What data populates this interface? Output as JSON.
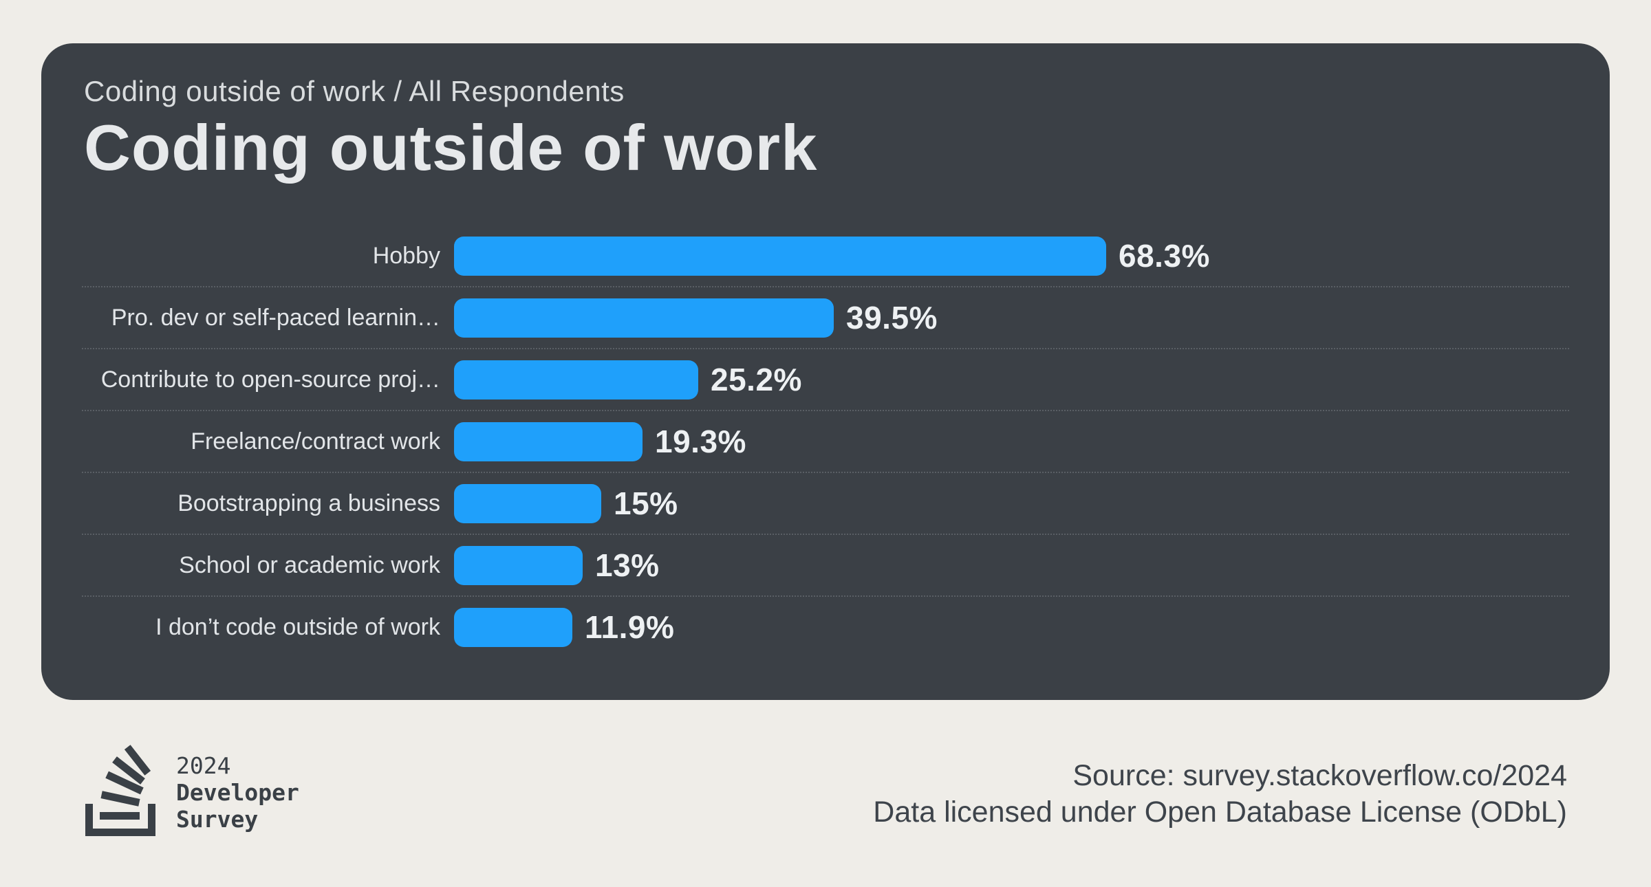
{
  "page": {
    "background_color": "#EFEDE8"
  },
  "card": {
    "background_color": "#3B4046",
    "breadcrumb": "Coding outside of work / All Respondents",
    "title": "Coding outside of work"
  },
  "chart_data": {
    "type": "bar",
    "orientation": "horizontal",
    "title": "Coding outside of work",
    "subtitle": "Coding outside of work / All Respondents",
    "categories": [
      "Hobby",
      "Pro. dev or self-paced learnin…",
      "Contribute to open-source proj…",
      "Freelance/contract work",
      "Bootstrapping a business",
      "School or academic work",
      "I don’t code outside of work"
    ],
    "values": [
      68.3,
      39.5,
      25.2,
      19.3,
      15,
      13,
      11.9
    ],
    "value_labels": [
      "68.3%",
      "39.5%",
      "25.2%",
      "19.3%",
      "15%",
      "13%",
      "11.9%"
    ],
    "bar_color": "#1FA0FB",
    "xlim": [
      0,
      100
    ],
    "grid": "dotted row separators",
    "legend": "none"
  },
  "footer": {
    "logo": {
      "icon": "stack-overflow-logo",
      "line1": "2024",
      "line2": "Developer",
      "line3": "Survey"
    },
    "source_line1": "Source: survey.stackoverflow.co/2024",
    "source_line2": "Data licensed under Open Database License (ODbL)"
  },
  "colors": {
    "bar_blue": "#1FA0FB",
    "card_background": "#3B4046",
    "page_background": "#EFEDE8",
    "title_text": "#E7E9EB",
    "breadcrumb_text": "#D9DCDE",
    "label_text": "#E2E5E8",
    "value_text": "#EEF1F3",
    "separator": "#5A5F65",
    "footer_text": "#3E444B",
    "logo_color": "#3A4046"
  }
}
